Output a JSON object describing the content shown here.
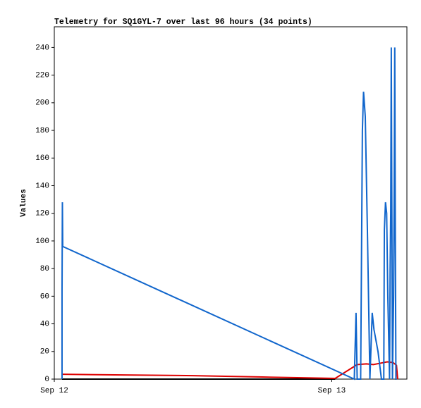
{
  "chart_data": {
    "type": "line",
    "title": "Telemetry for SQ1GYL-7 over last 96 hours (34 points)",
    "y_label": "Values",
    "xlim": [
      0,
      30.5
    ],
    "xticks": [
      {
        "value": 0,
        "label": "Sep 12"
      },
      {
        "value": 24,
        "label": "Sep 13"
      }
    ],
    "ylim": [
      0,
      255
    ],
    "yticks": [
      0,
      20,
      40,
      60,
      80,
      100,
      120,
      140,
      160,
      180,
      200,
      220,
      240
    ],
    "series": [
      {
        "color": "#000000",
        "x": [
          0.67,
          24.3
        ],
        "values": [
          0,
          0
        ]
      },
      {
        "color": "#dd0000",
        "x": [
          0.67,
          6,
          12,
          18,
          24.3,
          26.2,
          27,
          27.6,
          28.2,
          28.8,
          29.3,
          29.6,
          29.7
        ],
        "values": [
          3.5,
          3,
          2.5,
          1.5,
          0.5,
          10.5,
          11,
          10.5,
          11.5,
          12.5,
          12,
          10,
          0
        ]
      },
      {
        "color": "#1166cc",
        "x": [
          0.67,
          0.67,
          0.7,
          0.73,
          25.95,
          26.1,
          26.2,
          26.5,
          26.65,
          26.75,
          26.9,
          27.1,
          27.3,
          27.5,
          27.65,
          28.0,
          28.3,
          28.5,
          28.55,
          28.65,
          28.75,
          28.85,
          29.0,
          29.05,
          29.1,
          29.15,
          29.25,
          29.35,
          29.4,
          29.45,
          29.5,
          29.55,
          29.58,
          29.6
        ],
        "values": [
          0,
          64,
          128,
          96,
          0,
          48,
          0,
          0,
          180,
          208,
          190,
          100,
          0,
          48,
          36,
          20,
          0,
          0,
          108,
          128,
          120,
          60,
          0,
          80,
          120,
          240,
          0,
          60,
          136,
          240,
          100,
          0,
          0,
          0
        ]
      }
    ]
  }
}
